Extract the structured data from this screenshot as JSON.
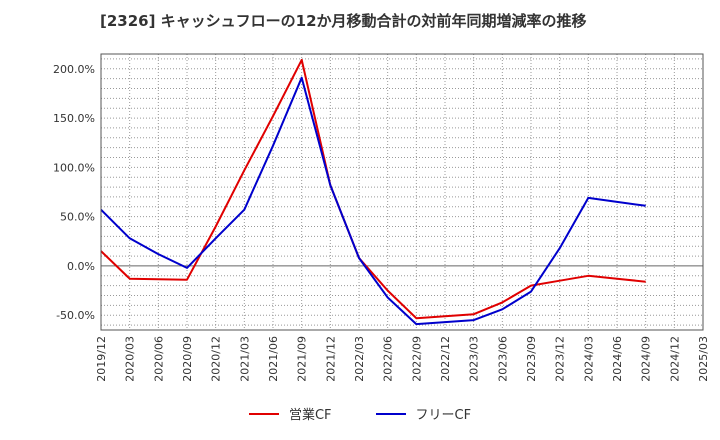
{
  "title": "[2326]  キャッシュフローの12か月移動合計の対前年同期増減率の推移",
  "chart_data": {
    "type": "line",
    "x": [
      "2019/12",
      "2020/03",
      "2020/06",
      "2020/09",
      "2020/12",
      "2021/03",
      "2021/06",
      "2021/09",
      "2021/12",
      "2022/03",
      "2022/06",
      "2022/09",
      "2022/12",
      "2023/03",
      "2023/06",
      "2023/09",
      "2023/12",
      "2024/03",
      "2024/06",
      "2024/09",
      "2024/12",
      "2025/03"
    ],
    "ylim": [
      -65,
      215
    ],
    "yticks": [
      200,
      150,
      100,
      50,
      0,
      -50
    ],
    "ytick_labels": [
      "200.0%",
      "150.0%",
      "100.0%",
      "50.0%",
      "0.0%",
      "-50.0%"
    ],
    "grid": true,
    "legend_position": "bottom",
    "series": [
      {
        "name": "営業CF",
        "color": "#e00000",
        "values": [
          15,
          -13,
          -13.5,
          -14,
          40,
          97,
          152,
          209,
          82,
          8,
          -25,
          -53,
          -51,
          -49,
          -37,
          -20,
          -15,
          -10,
          -13,
          -16,
          null,
          null
        ]
      },
      {
        "name": "フリーCF",
        "color": "#0000cc",
        "values": [
          57,
          28,
          12,
          -2,
          28,
          57,
          122,
          191,
          82,
          8,
          -32,
          -59,
          -57,
          -55,
          -44,
          -26,
          18,
          69,
          65,
          61,
          null,
          null
        ]
      }
    ]
  }
}
